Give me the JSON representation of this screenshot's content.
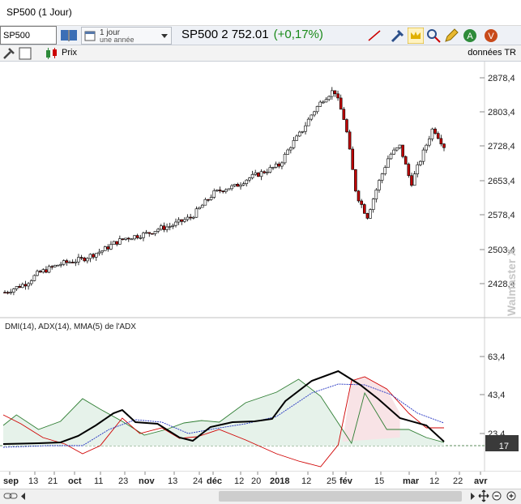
{
  "window": {
    "title": "SP500 (1 Jour)"
  },
  "toolbar": {
    "symbol_value": "SP500",
    "period_line1": "1 jour",
    "period_line2": "une année",
    "quote_text": "SP500 2 752.01",
    "quote_change": "(+0,17%)"
  },
  "subtoolbar": {
    "series_label": "Prix",
    "data_source": "données TR"
  },
  "indicator": {
    "label": "DMI(14), ADX(14), MMA(5) de l'ADX",
    "current_value": "17"
  },
  "watermark": "Walmaster X",
  "price_axis": [
    "2878,4",
    "2803,4",
    "2728,4",
    "2653,4",
    "2578,4",
    "2503,4",
    "2428,4"
  ],
  "ind_axis": [
    "63,4",
    "43,4",
    "23,4"
  ],
  "x_axis": [
    {
      "label": "sep",
      "bold": true
    },
    {
      "label": "13",
      "bold": false
    },
    {
      "label": "21",
      "bold": false
    },
    {
      "label": "oct",
      "bold": true
    },
    {
      "label": "11",
      "bold": false
    },
    {
      "label": "23",
      "bold": false
    },
    {
      "label": "nov",
      "bold": true
    },
    {
      "label": "13",
      "bold": false
    },
    {
      "label": "24",
      "bold": false
    },
    {
      "label": "déc",
      "bold": true
    },
    {
      "label": "12",
      "bold": false
    },
    {
      "label": "20",
      "bold": false
    },
    {
      "label": "2018",
      "bold": true
    },
    {
      "label": "12",
      "bold": false
    },
    {
      "label": "25",
      "bold": false
    },
    {
      "label": "fév",
      "bold": true
    },
    {
      "label": "15",
      "bold": false
    },
    {
      "label": "mar",
      "bold": true
    },
    {
      "label": "12",
      "bold": false
    },
    {
      "label": "22",
      "bold": false
    },
    {
      "label": "avr",
      "bold": true
    }
  ],
  "colors": {
    "up": "#ffffff",
    "down": "#c00000",
    "diplus": "#2e7d32",
    "diminus": "#d00000",
    "adx": "#000000",
    "mma": "#2030c0"
  },
  "chart_data": {
    "type": "line",
    "series": [
      {
        "name": "SP500",
        "ohlc_close_approx": [
          2440,
          2450,
          2460,
          2480,
          2490,
          2500,
          2505,
          2510,
          2520,
          2530,
          2545,
          2555,
          2560,
          2565,
          2575,
          2580,
          2590,
          2600,
          2625,
          2650,
          2660,
          2665,
          2680,
          2690,
          2700,
          2710,
          2750,
          2780,
          2820,
          2850,
          2870,
          2800,
          2650,
          2600,
          2670,
          2730,
          2750,
          2670,
          2730,
          2790,
          2750
        ]
      },
      {
        "name": "DMI(14)"
      },
      {
        "name": "ADX(14)"
      },
      {
        "name": "MMA(5) de l'ADX"
      }
    ],
    "price_range": [
      2400,
      2900
    ],
    "indicator_range": [
      15,
      70
    ]
  }
}
